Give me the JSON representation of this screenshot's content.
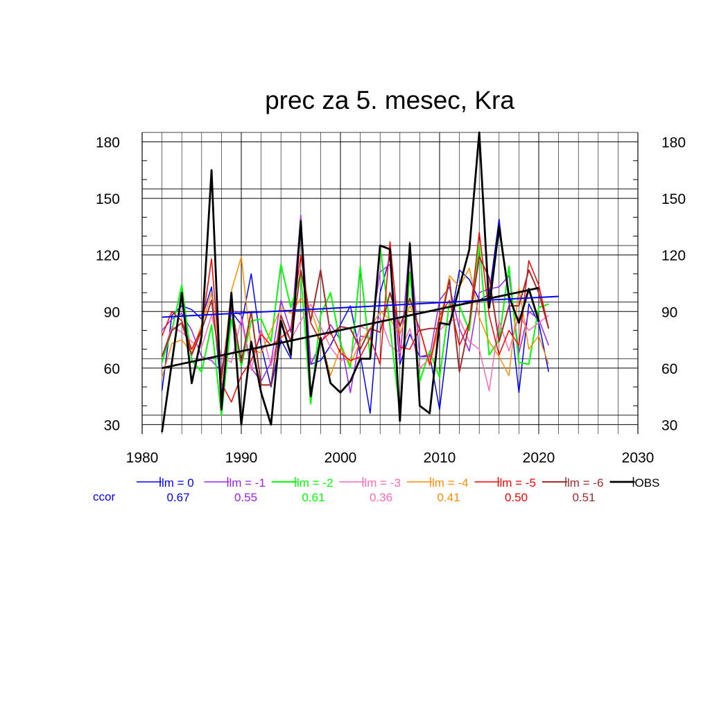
{
  "chart_data": {
    "type": "line",
    "title": "prec za 5. mesec, Kra",
    "xlabel": "",
    "ylabel": "",
    "xlim": [
      1980,
      2030
    ],
    "ylim": [
      25,
      185
    ],
    "x_ticks": [
      1980,
      1990,
      2000,
      2010,
      2020,
      2030
    ],
    "y_ticks": [
      30,
      60,
      90,
      120,
      150,
      180
    ],
    "grid": true,
    "x": [
      1982,
      1983,
      1984,
      1985,
      1986,
      1987,
      1988,
      1989,
      1990,
      1991,
      1992,
      1993,
      1994,
      1995,
      1996,
      1997,
      1998,
      1999,
      2000,
      2001,
      2002,
      2003,
      2004,
      2005,
      2006,
      2007,
      2008,
      2009,
      2010,
      2011,
      2012,
      2013,
      2014,
      2015,
      2016,
      2017,
      2018,
      2019,
      2020,
      2021
    ],
    "series": [
      {
        "name": "lm = 0",
        "color": "#0000ff",
        "width": 1.5,
        "trend": [
          87,
          98
        ],
        "values": [
          48,
          88,
          93,
          91,
          86,
          103,
          45,
          90,
          83,
          110,
          72,
          50,
          75,
          65,
          138,
          62,
          64,
          72,
          83,
          93,
          67,
          36,
          100,
          119,
          62,
          78,
          66,
          67,
          38,
          82,
          112,
          107,
          96,
          99,
          139,
          95,
          47,
          94,
          84,
          58
        ]
      },
      {
        "name": "lm = -1",
        "color": "#a020f0",
        "width": 1.5,
        "values": [
          80,
          86,
          89,
          80,
          66,
          64,
          58,
          91,
          88,
          60,
          53,
          63,
          96,
          79,
          141,
          62,
          73,
          83,
          75,
          47,
          77,
          76,
          111,
          115,
          64,
          127,
          66,
          66,
          96,
          103,
          81,
          69,
          100,
          102,
          103,
          109,
          68,
          90,
          86,
          72
        ]
      },
      {
        "name": "lm = -2",
        "color": "#00ff00",
        "width": 2,
        "values": [
          63,
          80,
          104,
          64,
          58,
          83,
          35,
          86,
          61,
          85,
          86,
          74,
          115,
          92,
          110,
          41,
          88,
          100,
          73,
          60,
          114,
          66,
          125,
          82,
          36,
          111,
          53,
          69,
          55,
          95,
          93,
          80,
          125,
          67,
          75,
          114,
          63,
          62,
          92,
          94
        ]
      },
      {
        "name": "lm = -3",
        "color": "#ff69b4",
        "width": 1.5,
        "values": [
          66,
          82,
          79,
          74,
          71,
          88,
          66,
          63,
          86,
          59,
          81,
          61,
          82,
          75,
          85,
          94,
          82,
          71,
          64,
          65,
          82,
          80,
          87,
          72,
          68,
          81,
          60,
          65,
          80,
          85,
          86,
          74,
          70,
          48,
          85,
          69,
          88,
          80,
          84,
          88
        ]
      },
      {
        "name": "lm = -4",
        "color": "#ff8c00",
        "width": 1.5,
        "values": [
          55,
          73,
          75,
          68,
          83,
          100,
          52,
          101,
          119,
          70,
          68,
          80,
          92,
          89,
          97,
          91,
          76,
          56,
          71,
          62,
          74,
          81,
          90,
          86,
          78,
          93,
          81,
          61,
          84,
          109,
          103,
          113,
          87,
          74,
          66,
          56,
          103,
          70,
          77,
          62
        ]
      },
      {
        "name": "lm = -5",
        "color": "#ff0000",
        "width": 1.5,
        "values": [
          77,
          90,
          85,
          70,
          81,
          118,
          52,
          42,
          56,
          64,
          78,
          72,
          76,
          81,
          120,
          84,
          74,
          79,
          68,
          64,
          66,
          76,
          62,
          127,
          71,
          70,
          81,
          62,
          88,
          96,
          72,
          84,
          132,
          88,
          67,
          80,
          72,
          117,
          104,
          81
        ]
      },
      {
        "name": "lm = -6",
        "color": "#a52a2a",
        "width": 2,
        "values": [
          66,
          80,
          84,
          67,
          80,
          96,
          55,
          93,
          63,
          90,
          51,
          51,
          88,
          74,
          112,
          85,
          112,
          78,
          82,
          81,
          70,
          81,
          79,
          100,
          82,
          97,
          80,
          81,
          81,
          107,
          58,
          84,
          119,
          108,
          74,
          93,
          93,
          112,
          100,
          81
        ]
      },
      {
        "name": "OBS",
        "color": "#000000",
        "width": 2.8,
        "trend": [
          60,
          102.5
        ],
        "values": [
          26,
          63,
          100,
          52,
          77,
          165,
          38,
          100,
          30,
          74,
          47,
          30,
          85,
          67,
          138,
          45,
          76,
          52,
          47,
          53,
          65,
          65,
          125,
          123,
          32,
          126,
          40,
          36,
          84,
          83,
          103,
          123,
          185,
          92,
          135,
          98,
          84,
          102,
          85,
          null
        ]
      }
    ],
    "legend_placement": "bottom",
    "ccor_label": "ccor",
    "ccor": [
      {
        "value": "0.67",
        "color": "#0000ff"
      },
      {
        "value": "0.55",
        "color": "#a020f0"
      },
      {
        "value": "0.61",
        "color": "#00ff00"
      },
      {
        "value": "0.36",
        "color": "#ff69b4"
      },
      {
        "value": "0.41",
        "color": "#ff8c00"
      },
      {
        "value": "0.50",
        "color": "#ff0000"
      },
      {
        "value": "0.51",
        "color": "#a52a2a"
      }
    ]
  }
}
